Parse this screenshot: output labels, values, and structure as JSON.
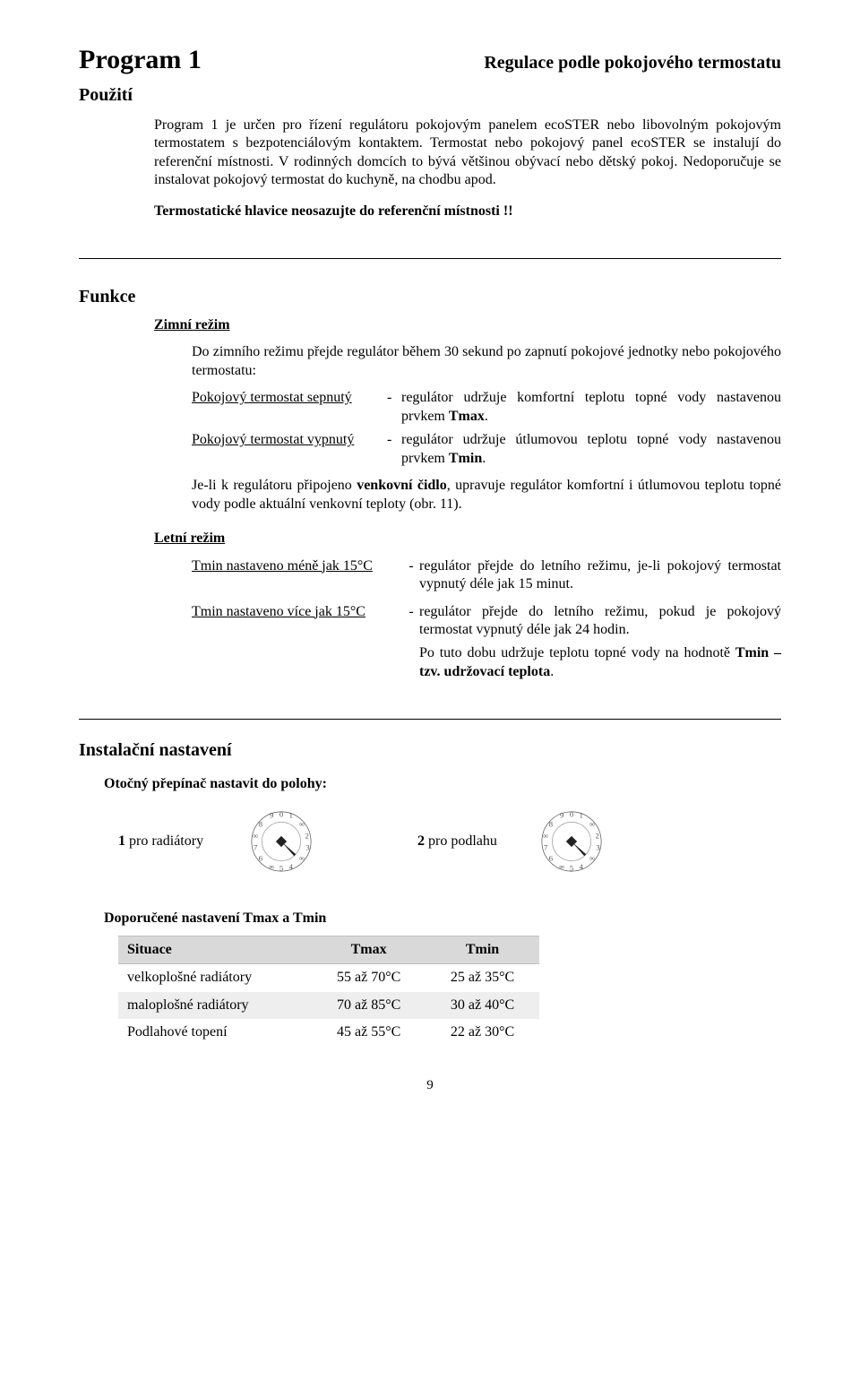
{
  "header": {
    "left": "Program 1",
    "right": "Regulace podle pokojového termostatu"
  },
  "pouziti_label": "Použití",
  "pouziti_p1": "Program 1 je určen pro řízení regulátoru pokojovým panelem ecoSTER nebo libovolným pokojovým termostatem s bezpotenciálovým kontaktem. Termostat nebo pokojový panel ecoSTER se instalují do referenční místnosti. V rodinných domcích to bývá většinou obývací nebo dětský pokoj. Nedoporučuje se instalovat pokojový termostat do kuchyně, na chodbu apod.",
  "pouziti_warn": "Termostatické hlavice neosazujte do referenční místnosti !!",
  "funkce_label": "Funkce",
  "zimni_head": "Zimní režim",
  "zimni_intro": "Do zimního režimu přejde regulátor během 30 sekund po zapnutí pokojové jednotky nebo pokojového termostatu:",
  "z_on_l": "Pokojový termostat sepnutý",
  "z_on_r_a": "regulátor udržuje komfortní teplotu topné vody nastavenou prvkem ",
  "z_on_r_b": "Tmax",
  "z_on_r_c": ".",
  "z_off_l": "Pokojový termostat vypnutý",
  "z_off_r_a": "regulátor udržuje útlumovou teplotu topné vody nastavenou prvkem ",
  "z_off_r_b": "Tmin",
  "z_off_r_c": ".",
  "zimni_p2_a": "Je-li k regulátoru připojeno ",
  "zimni_p2_b": "venkovní čidlo",
  "zimni_p2_c": ", upravuje regulátor komfortní i útlumovou teplotu topné vody podle aktuální venkovní teploty (obr. 11).",
  "letni_head": "Letní režim",
  "l_a_l": "Tmin nastaveno méně jak 15°C",
  "l_a_r": "regulátor přejde do letního režimu, je-li pokojový termostat vypnutý déle jak 15 minut.",
  "l_b_l": "Tmin nastaveno více jak 15°C",
  "l_b_r1": "regulátor přejde do letního režimu, pokud je pokojový termostat vypnutý déle jak 24 hodin.",
  "l_b_r2_a": "Po tuto dobu udržuje teplotu topné vody na hodnotě ",
  "l_b_r2_b": "Tmin  – tzv. udržovací teplota",
  "l_b_r2_c": ".",
  "inst_h": "Instalační nastavení",
  "otoc": "Otočný přepínač nastavit do polohy:",
  "rad_a": "1",
  "rad_b": " pro radiátory",
  "pod_a": "2",
  "pod_b": " pro podlahu",
  "dop_h": "Doporučené nastavení Tmax a Tmin",
  "table": {
    "cols": [
      "Situace",
      "Tmax",
      "Tmin"
    ],
    "rows": [
      [
        "velkoplošné radiátory",
        "55 až 70°C",
        "25 až 35°C"
      ],
      [
        "maloplošné radiátory",
        "70 až 85°C",
        "30 až 40°C"
      ],
      [
        "Podlahové topení",
        "45 až 55°C",
        "22 až 30°C"
      ]
    ]
  },
  "pagenum": "9",
  "dial": {
    "pointer1_deg": 135,
    "pointer2_deg": 135
  }
}
